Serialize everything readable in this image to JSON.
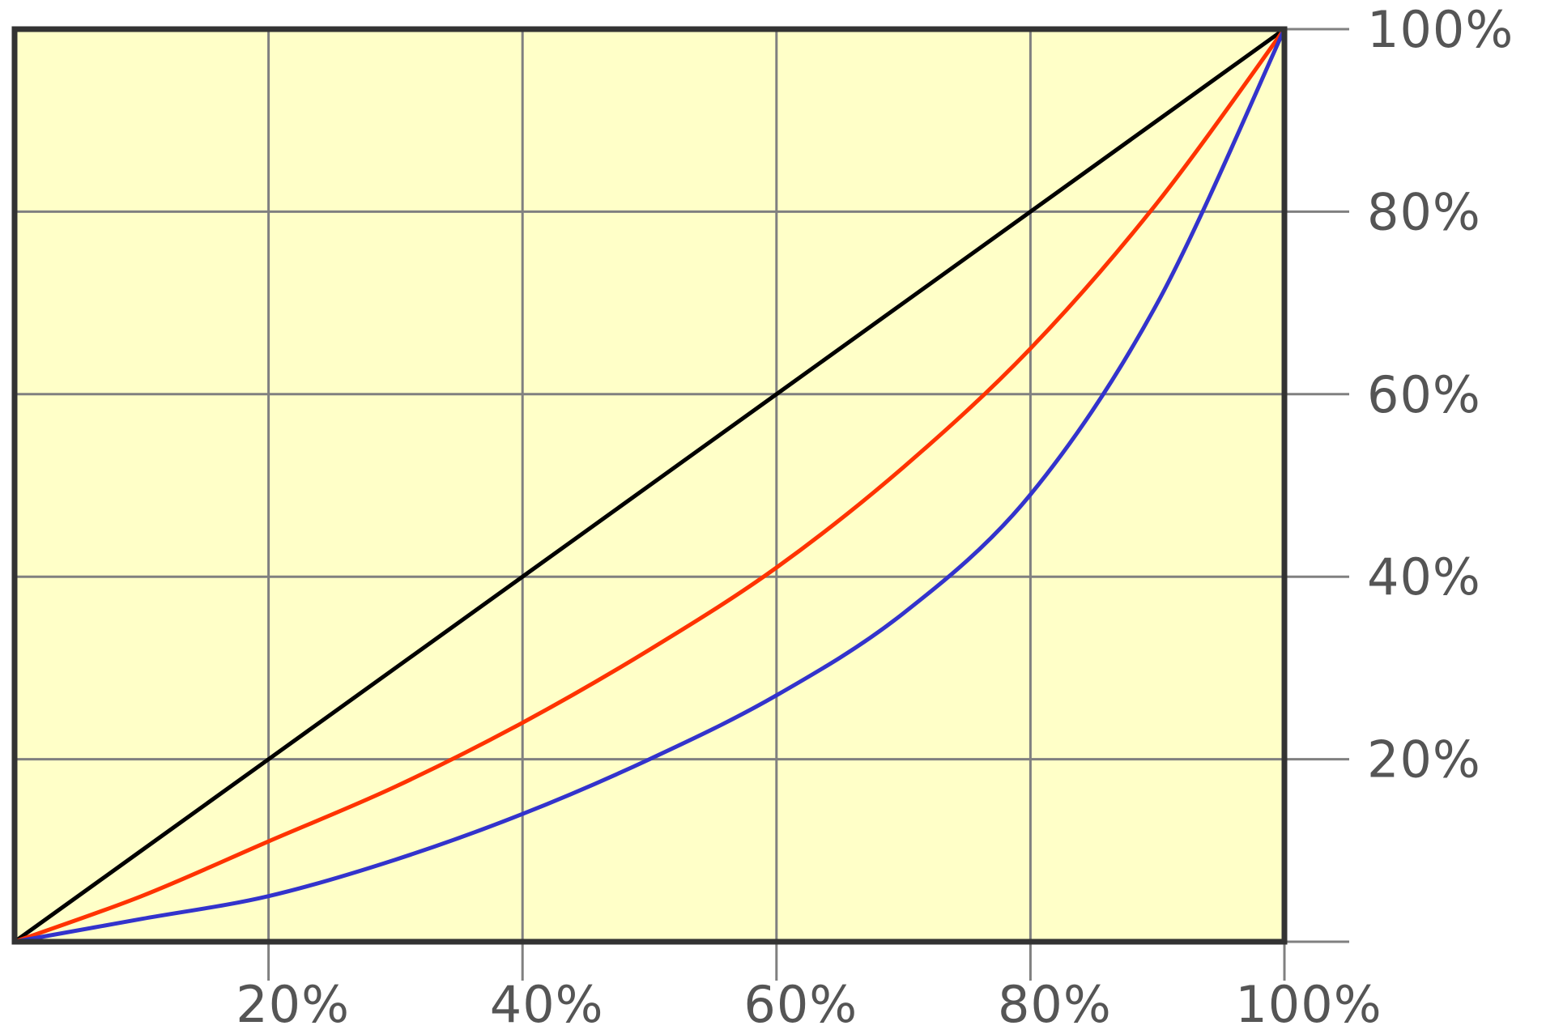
{
  "chart_data": {
    "type": "line",
    "x": [
      0,
      10,
      20,
      30,
      40,
      50,
      60,
      70,
      80,
      90,
      100
    ],
    "series": [
      {
        "values": [
          0,
          10,
          20,
          30,
          40,
          50,
          60,
          70,
          80,
          90,
          100
        ]
      },
      {
        "values": [
          0,
          5,
          11,
          17,
          24,
          32,
          41,
          52,
          65,
          81,
          100
        ]
      },
      {
        "values": [
          0,
          2.5,
          5,
          9,
          14,
          20,
          27,
          36,
          49,
          70,
          100
        ]
      }
    ],
    "x_tick_labels": [
      "20%",
      "40%",
      "60%",
      "80%",
      "100%"
    ],
    "y_tick_labels": [
      "100%",
      "80%",
      "60%",
      "40%",
      "20%"
    ],
    "title": "",
    "xlabel": "",
    "ylabel": "",
    "xlim": [
      0,
      100
    ],
    "ylim": [
      0,
      100
    ],
    "grid": true,
    "legend": "none",
    "colors": {
      "background": "#ffffc8",
      "frame": "#333333",
      "grid": "#808080",
      "series": [
        "#000000",
        "#ff3300",
        "#3333cc"
      ]
    }
  }
}
